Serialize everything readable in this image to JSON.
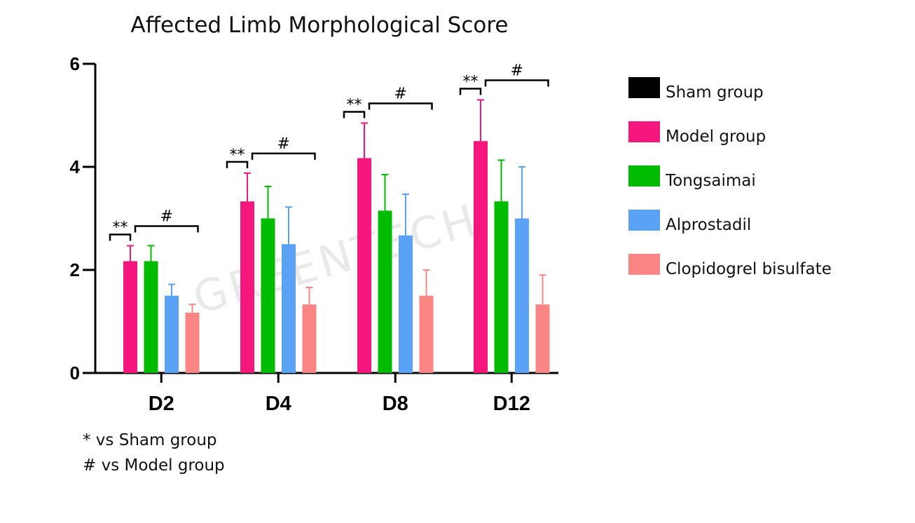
{
  "chart_data": {
    "type": "bar",
    "title": "Affected Limb Morphological Score",
    "xlabel": "",
    "ylabel": "",
    "ylim": [
      0,
      6
    ],
    "yticks": [
      "0",
      "2",
      "4",
      "6"
    ],
    "categories": [
      "D2",
      "D4",
      "D8",
      "D12"
    ],
    "series": [
      {
        "name": "Sham group",
        "color": "#000000",
        "values": [
          0,
          0,
          0,
          0
        ],
        "errors": [
          0,
          0,
          0,
          0
        ]
      },
      {
        "name": "Model group",
        "color": "#F5177E",
        "values": [
          2.17,
          3.33,
          4.17,
          4.5
        ],
        "errors": [
          0.3,
          0.55,
          0.68,
          0.8
        ]
      },
      {
        "name": "Tongsaimai",
        "color": "#00BB00",
        "values": [
          2.17,
          3.0,
          3.15,
          3.33
        ],
        "errors": [
          0.3,
          0.62,
          0.7,
          0.8
        ]
      },
      {
        "name": "Alprostadil",
        "color": "#5AA2F5",
        "values": [
          1.5,
          2.5,
          2.67,
          3.0
        ],
        "errors": [
          0.22,
          0.72,
          0.8,
          1.0
        ]
      },
      {
        "name": "Clopidogrel bisulfate",
        "color": "#FA8585",
        "values": [
          1.17,
          1.33,
          1.5,
          1.33
        ],
        "errors": [
          0.16,
          0.33,
          0.5,
          0.57
        ]
      }
    ],
    "significance": {
      "vs_sham_symbol": "**",
      "vs_model_symbol": "#"
    },
    "footnotes": [
      "* vs Sham group",
      "# vs Model group"
    ],
    "watermark": "GREENTECH",
    "legend_position": "right"
  }
}
